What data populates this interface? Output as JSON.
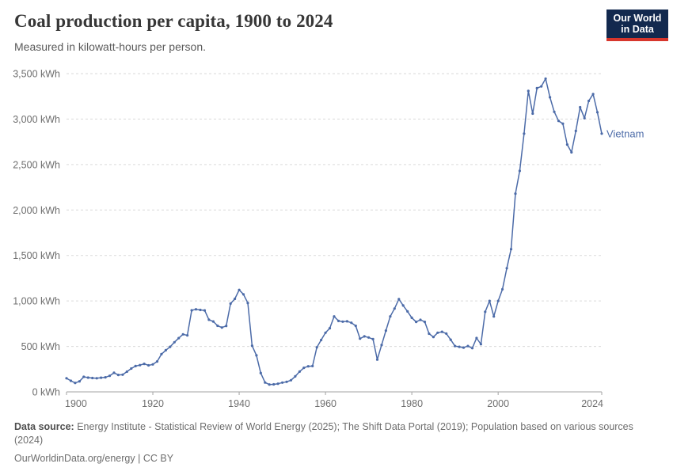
{
  "header": {
    "title": "Coal production per capita, 1900 to 2024",
    "subtitle": "Measured in kilowatt-hours per person.",
    "logo": {
      "line1": "Our World",
      "line2": "in Data",
      "bg": "#12294e",
      "accent": "#d7362c"
    }
  },
  "chart_data": {
    "type": "line",
    "title": "Coal production per capita, 1900 to 2024",
    "xlabel": "",
    "ylabel": "kWh per person",
    "xlim": [
      1900,
      2024
    ],
    "ylim": [
      0,
      3500
    ],
    "xticks": [
      1900,
      1920,
      1940,
      1960,
      1980,
      2000,
      2024
    ],
    "yticks": [
      0,
      500,
      1000,
      1500,
      2000,
      2500,
      3000,
      3500
    ],
    "ytick_suffix": " kWh",
    "grid": "horizontal-dashed",
    "legend_position": "line-end-label",
    "colors": {
      "grid": "#dadada",
      "axis": "#a3a3a3",
      "tick_label": "#6e6e6e"
    },
    "series": [
      {
        "name": "Vietnam",
        "color": "#4c6ba8",
        "years": [
          1900,
          1901,
          1902,
          1903,
          1904,
          1905,
          1906,
          1907,
          1908,
          1909,
          1910,
          1911,
          1912,
          1913,
          1914,
          1915,
          1916,
          1917,
          1918,
          1919,
          1920,
          1921,
          1922,
          1923,
          1924,
          1925,
          1926,
          1927,
          1928,
          1929,
          1930,
          1931,
          1932,
          1933,
          1934,
          1935,
          1936,
          1937,
          1938,
          1939,
          1940,
          1941,
          1942,
          1943,
          1944,
          1945,
          1946,
          1947,
          1948,
          1949,
          1950,
          1951,
          1952,
          1953,
          1954,
          1955,
          1956,
          1957,
          1958,
          1959,
          1960,
          1961,
          1962,
          1963,
          1964,
          1965,
          1966,
          1967,
          1968,
          1969,
          1970,
          1971,
          1972,
          1973,
          1974,
          1975,
          1976,
          1977,
          1978,
          1979,
          1980,
          1981,
          1982,
          1983,
          1984,
          1985,
          1986,
          1987,
          1988,
          1989,
          1990,
          1991,
          1992,
          1993,
          1994,
          1995,
          1996,
          1997,
          1998,
          1999,
          2000,
          2001,
          2002,
          2003,
          2004,
          2005,
          2006,
          2007,
          2008,
          2009,
          2010,
          2011,
          2012,
          2013,
          2014,
          2015,
          2016,
          2017,
          2018,
          2019,
          2020,
          2021,
          2022,
          2023,
          2024
        ],
        "values": [
          150,
          122,
          98,
          116,
          165,
          157,
          152,
          150,
          156,
          160,
          177,
          210,
          186,
          189,
          222,
          257,
          284,
          294,
          308,
          292,
          302,
          334,
          414,
          458,
          495,
          546,
          591,
          633,
          622,
          897,
          908,
          901,
          896,
          793,
          774,
          727,
          708,
          725,
          971,
          1023,
          1121,
          1073,
          978,
          508,
          401,
          207,
          103,
          81,
          83,
          90,
          102,
          111,
          128,
          171,
          223,
          265,
          281,
          284,
          490,
          570,
          650,
          700,
          830,
          780,
          772,
          776,
          760,
          726,
          586,
          610,
          598,
          580,
          355,
          516,
          674,
          830,
          916,
          1020,
          950,
          885,
          815,
          770,
          792,
          770,
          640,
          603,
          650,
          661,
          641,
          574,
          504,
          495,
          487,
          504,
          481,
          592,
          524,
          880,
          1000,
          830,
          1000,
          1128,
          1360,
          1570,
          2180,
          2430,
          2840,
          3310,
          3060,
          3340,
          3360,
          3445,
          3240,
          3080,
          2980,
          2950,
          2720,
          2635,
          2870,
          3130,
          3010,
          3200,
          3275,
          3075,
          2840
        ]
      }
    ]
  },
  "footer": {
    "source_label": "Data source:",
    "source_text": " Energy Institute - Statistical Review of World Energy (2025); The Shift Data Portal (2019); Population based on various sources (2024)",
    "link_text": "OurWorldinData.org/energy",
    "separator": " | ",
    "license": "CC BY"
  }
}
